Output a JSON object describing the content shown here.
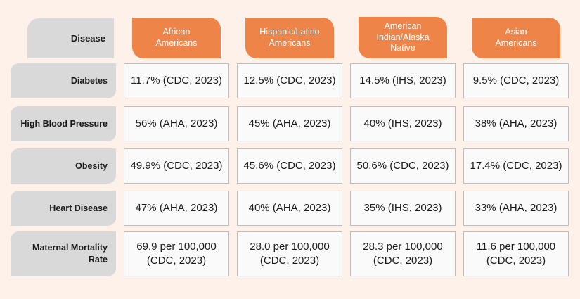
{
  "table": {
    "header": {
      "disease_label": "Disease",
      "groups": [
        [
          "African",
          "Americans"
        ],
        [
          "Hispanic/Latino",
          "Americans"
        ],
        [
          "American",
          "Indian/Alaska",
          "Native"
        ],
        [
          "Asian",
          "Americans"
        ]
      ]
    },
    "rows": [
      {
        "label": [
          "Diabetes"
        ],
        "cells": [
          [
            "11.7% (CDC, 2023)"
          ],
          [
            "12.5% (CDC, 2023)"
          ],
          [
            "14.5% (IHS, 2023)"
          ],
          [
            "9.5% (CDC, 2023)"
          ]
        ]
      },
      {
        "label": [
          "High Blood Pressure"
        ],
        "cells": [
          [
            "56% (AHA, 2023)"
          ],
          [
            "45% (AHA, 2023)"
          ],
          [
            "40% (IHS, 2023)"
          ],
          [
            "38% (AHA, 2023)"
          ]
        ]
      },
      {
        "label": [
          "Obesity"
        ],
        "cells": [
          [
            "49.9% (CDC, 2023)"
          ],
          [
            "45.6% (CDC, 2023)"
          ],
          [
            "50.6% (CDC, 2023)"
          ],
          [
            "17.4% (CDC, 2023)"
          ]
        ]
      },
      {
        "label": [
          "Heart Disease"
        ],
        "cells": [
          [
            "47% (AHA, 2023)"
          ],
          [
            "40% (AHA, 2023)"
          ],
          [
            "35% (IHS, 2023)"
          ],
          [
            "33% (AHA, 2023)"
          ]
        ]
      },
      {
        "label": [
          "Maternal Mortality",
          "Rate"
        ],
        "cells": [
          [
            "69.9 per 100,000",
            "(CDC, 2023)"
          ],
          [
            "28.0 per 100,000",
            "(CDC, 2023)"
          ],
          [
            "28.3 per 100,000",
            "(CDC, 2023)"
          ],
          [
            "11.6 per 100,000",
            "(CDC, 2023)"
          ]
        ]
      }
    ]
  },
  "colors": {
    "background": "#fdf1ea",
    "header_accent": "#ef8448",
    "label_gray": "#d9d9d9",
    "cell_border": "#bdbdbd"
  }
}
